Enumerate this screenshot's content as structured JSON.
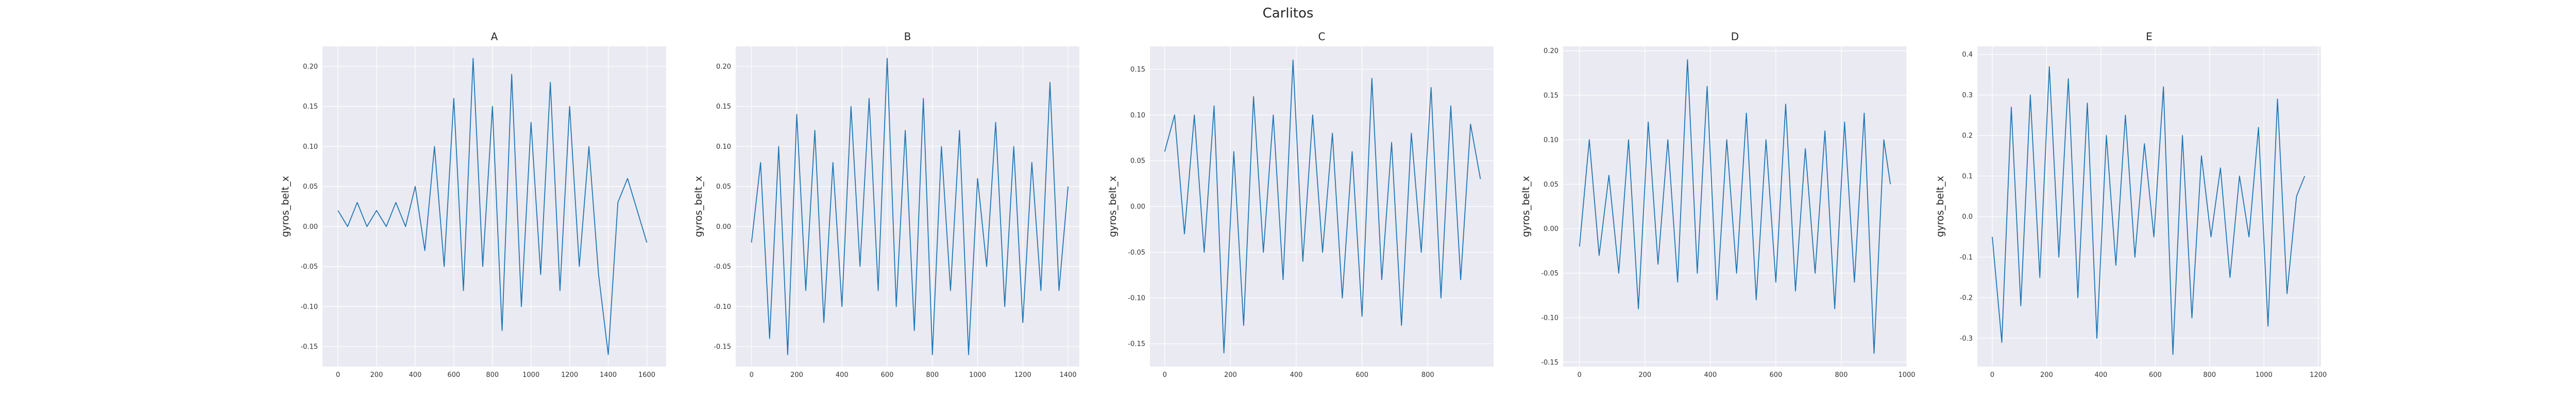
{
  "figure": {
    "suptitle": "Carlitos"
  },
  "chart_data": [
    {
      "type": "line",
      "title": "A",
      "xlabel": "",
      "ylabel": "gyros_belt_x",
      "xlim": [
        -80,
        1700
      ],
      "ylim": [
        -0.175,
        0.225
      ],
      "xticks": [
        0,
        200,
        400,
        600,
        800,
        1000,
        1200,
        1400,
        1600
      ],
      "yticks": [
        -0.15,
        -0.1,
        -0.05,
        0.0,
        0.05,
        0.1,
        0.15,
        0.2
      ],
      "ytick_labels": [
        "-0.15",
        "-0.10",
        "-0.05",
        "0.00",
        "0.05",
        "0.10",
        "0.15",
        "0.20"
      ],
      "grid": true,
      "color": "#1f77b4",
      "series": [
        {
          "x": [
            0,
            50,
            100,
            150,
            200,
            250,
            300,
            350,
            400,
            450,
            500,
            550,
            600,
            650,
            700,
            750,
            800,
            850,
            900,
            950,
            1000,
            1050,
            1100,
            1150,
            1200,
            1250,
            1300,
            1350,
            1400,
            1450,
            1500,
            1550,
            1600
          ],
          "values": [
            0.02,
            0.0,
            0.03,
            0.0,
            0.02,
            0.0,
            0.03,
            0.0,
            0.05,
            -0.03,
            0.1,
            -0.05,
            0.16,
            -0.08,
            0.21,
            -0.05,
            0.15,
            -0.13,
            0.19,
            -0.1,
            0.13,
            -0.06,
            0.18,
            -0.08,
            0.15,
            -0.05,
            0.1,
            -0.06,
            -0.16,
            0.03,
            0.06,
            0.02,
            -0.02
          ]
        }
      ]
    },
    {
      "type": "line",
      "title": "B",
      "xlabel": "",
      "ylabel": "gyros_belt_x",
      "xlim": [
        -70,
        1450
      ],
      "ylim": [
        -0.175,
        0.225
      ],
      "xticks": [
        0,
        200,
        400,
        600,
        800,
        1000,
        1200,
        1400
      ],
      "yticks": [
        -0.15,
        -0.1,
        -0.05,
        0.0,
        0.05,
        0.1,
        0.15,
        0.2
      ],
      "ytick_labels": [
        "-0.15",
        "-0.10",
        "-0.05",
        "0.00",
        "0.05",
        "0.10",
        "0.15",
        "0.20"
      ],
      "grid": true,
      "color": "#1f77b4",
      "series": [
        {
          "x": [
            0,
            40,
            80,
            120,
            160,
            200,
            240,
            280,
            320,
            360,
            400,
            440,
            480,
            520,
            560,
            600,
            640,
            680,
            720,
            760,
            800,
            840,
            880,
            920,
            960,
            1000,
            1040,
            1080,
            1120,
            1160,
            1200,
            1240,
            1280,
            1320,
            1360,
            1400
          ],
          "values": [
            -0.02,
            0.08,
            -0.14,
            0.1,
            -0.16,
            0.14,
            -0.08,
            0.12,
            -0.12,
            0.08,
            -0.1,
            0.15,
            -0.05,
            0.16,
            -0.08,
            0.21,
            -0.1,
            0.12,
            -0.13,
            0.16,
            -0.16,
            0.1,
            -0.08,
            0.12,
            -0.16,
            0.06,
            -0.05,
            0.13,
            -0.1,
            0.1,
            -0.12,
            0.08,
            -0.08,
            0.18,
            -0.08,
            0.05
          ]
        }
      ]
    },
    {
      "type": "line",
      "title": "C",
      "xlabel": "",
      "ylabel": "gyros_belt_x",
      "xlim": [
        -45,
        1000
      ],
      "ylim": [
        -0.175,
        0.175
      ],
      "xticks": [
        0,
        200,
        400,
        600,
        800
      ],
      "yticks": [
        -0.15,
        -0.1,
        -0.05,
        0.0,
        0.05,
        0.1,
        0.15
      ],
      "ytick_labels": [
        "-0.15",
        "-0.10",
        "-0.05",
        "0.00",
        "0.05",
        "0.10",
        "0.15"
      ],
      "grid": true,
      "color": "#1f77b4",
      "series": [
        {
          "x": [
            0,
            30,
            60,
            90,
            120,
            150,
            180,
            210,
            240,
            270,
            300,
            330,
            360,
            390,
            420,
            450,
            480,
            510,
            540,
            570,
            600,
            630,
            660,
            690,
            720,
            750,
            780,
            810,
            840,
            870,
            900,
            930,
            960
          ],
          "values": [
            0.06,
            0.1,
            -0.03,
            0.1,
            -0.05,
            0.11,
            -0.16,
            0.06,
            -0.13,
            0.12,
            -0.05,
            0.1,
            -0.08,
            0.16,
            -0.06,
            0.1,
            -0.05,
            0.08,
            -0.1,
            0.06,
            -0.12,
            0.14,
            -0.08,
            0.07,
            -0.13,
            0.08,
            -0.05,
            0.13,
            -0.1,
            0.11,
            -0.08,
            0.09,
            0.03
          ]
        }
      ]
    },
    {
      "type": "line",
      "title": "D",
      "xlabel": "",
      "ylabel": "gyros_belt_x",
      "xlim": [
        -50,
        1000
      ],
      "ylim": [
        -0.155,
        0.205
      ],
      "xticks": [
        0,
        200,
        400,
        600,
        800,
        1000
      ],
      "yticks": [
        -0.15,
        -0.1,
        -0.05,
        0.0,
        0.05,
        0.1,
        0.15,
        0.2
      ],
      "ytick_labels": [
        "-0.15",
        "-0.10",
        "-0.05",
        "0.00",
        "0.05",
        "0.10",
        "0.15",
        "0.20"
      ],
      "grid": true,
      "color": "#1f77b4",
      "series": [
        {
          "x": [
            0,
            30,
            60,
            90,
            120,
            150,
            180,
            210,
            240,
            270,
            300,
            330,
            360,
            390,
            420,
            450,
            480,
            510,
            540,
            570,
            600,
            630,
            660,
            690,
            720,
            750,
            780,
            810,
            840,
            870,
            900,
            930,
            950
          ],
          "values": [
            -0.02,
            0.1,
            -0.03,
            0.06,
            -0.05,
            0.1,
            -0.09,
            0.12,
            -0.04,
            0.1,
            -0.06,
            0.19,
            -0.05,
            0.16,
            -0.08,
            0.1,
            -0.05,
            0.13,
            -0.08,
            0.1,
            -0.06,
            0.14,
            -0.07,
            0.09,
            -0.05,
            0.11,
            -0.09,
            0.12,
            -0.06,
            0.13,
            -0.14,
            0.1,
            0.05
          ]
        }
      ]
    },
    {
      "type": "line",
      "title": "E",
      "xlabel": "",
      "ylabel": "gyros_belt_x",
      "xlim": [
        -55,
        1210
      ],
      "ylim": [
        -0.37,
        0.42
      ],
      "xticks": [
        0,
        200,
        400,
        600,
        800,
        1000,
        1200
      ],
      "yticks": [
        -0.3,
        -0.2,
        -0.1,
        0.0,
        0.1,
        0.2,
        0.3,
        0.4
      ],
      "ytick_labels": [
        "-0.3",
        "-0.2",
        "-0.1",
        "0.0",
        "0.1",
        "0.2",
        "0.3",
        "0.4"
      ],
      "grid": true,
      "color": "#1f77b4",
      "series": [
        {
          "x": [
            0,
            35,
            70,
            105,
            140,
            175,
            210,
            245,
            280,
            315,
            350,
            385,
            420,
            455,
            490,
            525,
            560,
            595,
            630,
            665,
            700,
            735,
            770,
            805,
            840,
            875,
            910,
            945,
            980,
            1015,
            1050,
            1085,
            1120,
            1150
          ],
          "values": [
            -0.05,
            -0.31,
            0.27,
            -0.22,
            0.3,
            -0.15,
            0.37,
            -0.1,
            0.34,
            -0.2,
            0.28,
            -0.3,
            0.2,
            -0.12,
            0.25,
            -0.1,
            0.18,
            -0.05,
            0.32,
            -0.34,
            0.2,
            -0.25,
            0.15,
            -0.05,
            0.12,
            -0.15,
            0.1,
            -0.05,
            0.22,
            -0.27,
            0.29,
            -0.19,
            0.05,
            0.1
          ]
        }
      ]
    }
  ]
}
